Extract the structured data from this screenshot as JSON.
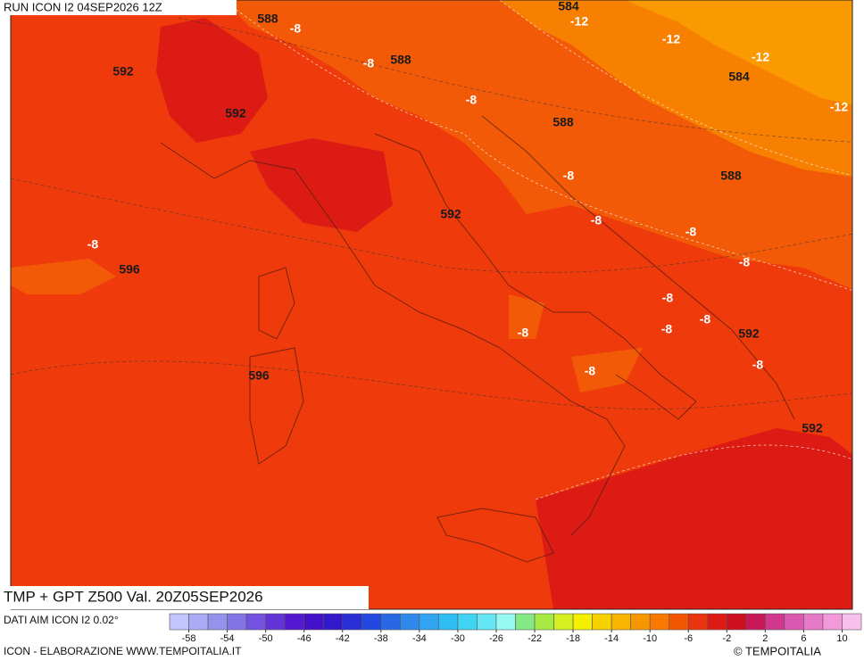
{
  "header": {
    "run": "RUN ICON I2 04SEP2026 12Z"
  },
  "map": {
    "height_labels": [
      588,
      588,
      592,
      592,
      584,
      584,
      588,
      592,
      588,
      596,
      596,
      592,
      592
    ],
    "temperature_labels": [
      -8,
      -12,
      -12,
      -12,
      -12,
      -8,
      -8,
      -8,
      -8,
      -8,
      -8,
      -8,
      -8,
      -8,
      -8,
      -8,
      -8,
      -8
    ]
  },
  "footer": {
    "product": "TMP + GPT Z500 Val. 20Z05SEP2026",
    "source": "DATI AIM ICON I2 0.02°",
    "credit": "ICON - ELABORAZIONE WWW.TEMPOITALIA.IT",
    "copyright": "© TEMPOITALIA"
  },
  "colorbar": {
    "range": [
      -60,
      12
    ],
    "ticks": [
      -58,
      -54,
      -50,
      -46,
      -42,
      -38,
      -34,
      -30,
      -26,
      -22,
      -18,
      -14,
      -10,
      -6,
      -2,
      2,
      6,
      10
    ],
    "colors": [
      "#c4c4ff",
      "#ababf5",
      "#9592ee",
      "#8474e8",
      "#7352e0",
      "#6434d8",
      "#5418d0",
      "#4410c8",
      "#3418cc",
      "#2a30d6",
      "#2248e0",
      "#2868e4",
      "#3088ea",
      "#30a4f0",
      "#30bef2",
      "#40d4f2",
      "#64e6f4",
      "#98f8f4",
      "#84e884",
      "#a8ea44",
      "#d4f020",
      "#f4f000",
      "#f8d200",
      "#f8b400",
      "#f89600",
      "#f87800",
      "#f25600",
      "#ea3410",
      "#dc1c14",
      "#cc1020",
      "#c81858",
      "#d03890",
      "#dc58b0",
      "#e878c8",
      "#f498dc",
      "#f8c0ec"
    ]
  }
}
